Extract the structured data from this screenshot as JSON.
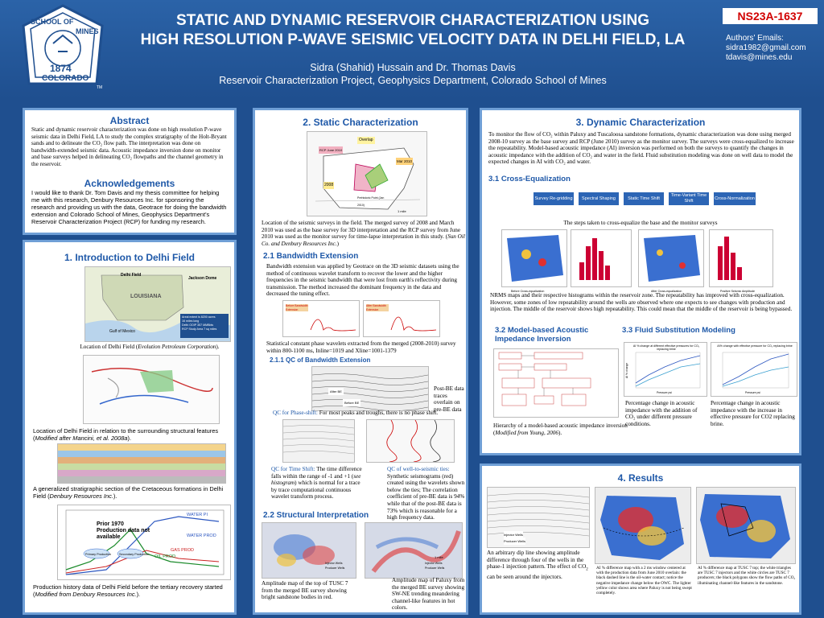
{
  "header": {
    "logo": {
      "top_text": "SCHOOL OF",
      "right_text": "MINES",
      "year": "1874",
      "bottom_text": "COLORADO",
      "tm": "TM"
    },
    "title_line1": "STATIC AND DYNAMIC RESERVOIR CHARACTERIZATION USING",
    "title_line2": "HIGH RESOLUTION P-WAVE SEISMIC VELOCITY DATA IN DELHI FIELD, LA",
    "authors": "Sidra (Shahid) Hussain and Dr. Thomas  Davis",
    "affiliation": "Reservoir Characterization Project, Geophysics Department, Colorado School of Mines",
    "badge": "NS23A-1637",
    "emails_label": "Authors' Emails:",
    "email1": "sidra1982@gmail.com",
    "email2": "tdavis@mines.edu"
  },
  "abstract": {
    "title": "Abstract",
    "text": "Static and dynamic reservoir characterization was done on high resolution P-wave seismic data in Delhi Field, LA to study the complex stratigraphy of the Holt-Bryant sands and to delineate the CO₂ flow path. The interpretation was done on bandwidth-extended seismic data. Acoustic impedance inversion done on monitor and base surveys helped in delineating CO₂ flowpaths and the channel geometry in the reservoir."
  },
  "acknowledgements": {
    "title": "Acknowledgements",
    "text": "I would like to thank Dr. Tom Davis and my thesis committee for helping me with this research, Denbury Resources Inc. for sponsoring the research and providing us with the data, Geotrace for doing the bandwidth extension and Colorado School of Mines, Geophysics Department's Reservoir Characterization Project (RCP) for funding my research."
  },
  "intro": {
    "title": "1. Introduction to Delhi Field",
    "map_labels": {
      "delhi_field": "Delhi Field",
      "jackson_dome": "Jackson Dome",
      "louisiana": "LOUISIANA",
      "gulf": "Gulf of Mexico"
    },
    "map_legend": [
      "Areal extent is 8200 acres",
      "16 miles long",
      "Delhi OOIP 357 MMBbls",
      "RCP Study Area 7 sq miles"
    ],
    "cap1_prefix": "Location of Delhi Field (",
    "cap1_italic": "Evolution Petroleum Corporation",
    "cap1_suffix": ").",
    "cap2_prefix": "Location of Delhi Field in relation to the surrounding structural features (",
    "cap2_italic": "Modified after Mancini, et al. 2008a",
    "cap2_suffix": ").",
    "cap3_prefix": "A generalized stratigraphic section of the Cretaceous formations in Delhi Field (",
    "cap3_italic": "Denbury Resources Inc.",
    "cap3_suffix": ").",
    "prod_chart": {
      "prior": "Prior 1970 Production data not available",
      "water_pi": "WATER PI",
      "water_prod": "WATER PROD",
      "oil_prod": "OIL PROD",
      "gas_prod": "GAS PROD",
      "primary": "Primary Production",
      "secondary": "Secondary Production"
    },
    "cap4_prefix": "Production history data of Delhi Field before the tertiary recovery started (",
    "cap4_italic": "Modified from Denbury Resources Inc.",
    "cap4_suffix": ")."
  },
  "static": {
    "title": "2. Static Characterization",
    "map_labels": {
      "overlap": "Overlap",
      "rcp": "RCP June 2010",
      "mar": "Mar 2010",
      "y2008": "2008",
      "pm": "Prehistoric Point (Jan 2010)",
      "scale": "1 mile"
    },
    "map_caption_prefix": "Location of the seismic surveys in the field. The merged survey of 2008 and March 2010 was used as the base survey for 3D interpretation and the RCP survey from June 2010 was used as the monitor survey for time-lapse interpretation in this study. (",
    "map_caption_italic": "Sun Oil Co. and Denbury Resources Inc.",
    "map_caption_suffix": ")",
    "bw_title": "2.1 Bandwidth Extension",
    "bw_text": "Bandwidth extension was applied by Geotrace on the 3D seismic datasets using the method of continuous wavelet transform to recover the lower and the higher frequencies in the seismic bandwidth that were lost from earth's reflectivity during transmission. The method increased the dominant frequency in the data and decreased the tuning effect.",
    "wave_labels": {
      "before": "Before Bandwidth Extension",
      "after": "After Bandwidth Extension"
    },
    "wave_caption": "Statistical constant phase wavelets extracted from the merged (2008-2010) survey within 800-1100 ms, Inline=1019 and Xline=1001-1379",
    "qc_title": "2.1.1 QC of Bandwidth Extension",
    "qc_labels": {
      "after": "After BE",
      "before": "Before BE"
    },
    "qc_side": "Post-BE data traces overlain on pre-BE data",
    "qc_phase_label": "QC for Phase-shift:",
    "qc_phase_text": " For most peaks and troughs, there is no phase shift.",
    "qc_time_label": "QC for Time Shift:",
    "qc_time_text1": " The time difference falls within the range of -1 and +1 (",
    "qc_time_italic": "see histogram",
    "qc_time_text2": ") which is normal for a trace by trace computational continuous wavelet transform process.",
    "qc_well_label": "QC of well-to-seismic ties:",
    "qc_well_text": " Synthetic seismograms (red) created using the wavelets shown below the ties; The correlation coefficient of pre-BE data is 94% while that of the post-BE data is 73% which is reasonable for a high frequency data.",
    "si_title": "2.2 Structural Interpretation",
    "si_legend1": "Injector Wells",
    "si_legend2": "Producer Wells",
    "si_scale": "1 mile",
    "si_cap1": "Amplitude map of the top of TUSC 7 from the merged BE survey showing bright sandstone bodies in red.",
    "si_cap2": "Amplitude map of Paluxy from the merged BE survey showing SW-NE trending meandering channel-like features in hot colors."
  },
  "dynamic": {
    "title": "3. Dynamic Characterization",
    "intro": "To monitor the flow of CO₂ within Paluxy and Tuscaloosa sandstone formations, dynamic characterization was done using merged 2008-10 survey as the base survey and RCP (June 2010) survey as the monitor survey. The surveys were cross-equalized to increase the repeatability. Model-based acoustic impedance (AI) inversion was performed on both the surveys to quantify the changes in acoustic impedance with the addition of CO₂ and water in the field. Fluid substitution modeling was done on well data to model the expected changes in AI with CO₂ and water.",
    "ce_title": "3.1 Cross-Equalization",
    "flow": [
      "Survey Re-gridding",
      "Spectral Shaping",
      "Static Time Shift",
      "Time-Variant Time Shift",
      "Cross-Normalization"
    ],
    "flow_caption": "The steps taken to cross-equalize the base and the monitor surveys",
    "nrms_labels": [
      "Before Cross-equalization",
      "After Cross-equalization",
      "Positive Seismic Amplitude"
    ],
    "nrms_caption": "NRMS maps and their respective histograms within the reservoir zone. The repeatability has improved with cross-equalization. However, some zones of low repeatability around the wells are observed where one expects to see changes with production and injection. The middle of the reservoir shows high repeatability. This could mean that the middle of the reservoir is being bypassed.",
    "mb_title": "3.2 Model-based Acoustic Impedance Inversion",
    "mb_caption_prefix": "Hierarchy of a model-based acoustic impedance inversion (",
    "mb_caption_italic": "Modified from Young, 2006",
    "mb_caption_suffix": ").",
    "fs_title": "3.3 Fluid Substitution Modeling",
    "fs_chart1_title": "AI % change at different effective pressures for CO₂ replacing brine",
    "fs_chart2_title": "AI% change with effective pressure for CO₂ replacing brine",
    "fs_x": "Pressure psi",
    "fs_y": "AI % change",
    "fs_cap1": "Percentage change in acoustic impedance with the addition of CO₂ under different pressure conditions.",
    "fs_cap2": "Percentage change in acoustic impedance with the increase in effective pressure for CO2 replacing brine."
  },
  "results": {
    "title": "4. Results",
    "legend": [
      "Injector Wells",
      "Producer Wells"
    ],
    "cap1_prefix": "An arbitrary dip line showing amplitude difference through four of the wells in the phase-1 injection pattern. The effect of CO",
    "cap1_suffix": " can be seen around the injectors.",
    "cap2": "AI % difference map with a 2 ms window centered at with the production data from June 2010 overlain: the black dashed line is the oil-water contact; notice the negative impedance change below the OWC. The lighter yellow color shows area where Paluxy is not being swept completely.",
    "cap3": "AI % difference map at TUSC 7 top; the white triangles are TUSC 7 injectors and the white circles are TUSC 7 producers; the black polygons show the flow paths of CO₂ illuminating channel-like features in the sandstone."
  },
  "colors": {
    "background": "#1f4f8f",
    "panel_border": "#6f9fd6",
    "heading": "#1e58a8",
    "badge_text": "#d10000",
    "flow_box": "#2c65b5"
  }
}
